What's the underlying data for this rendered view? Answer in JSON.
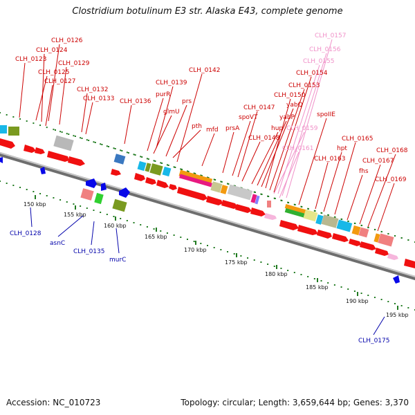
{
  "title": "Clostridium botulinum E3 str. Alaska E43, complete genome",
  "footer": {
    "accession_text": "Accession: NC_010723",
    "summary_text": "Topology: circular; Length: 3,659,644 bp; Genes: 3,370"
  },
  "colors": {
    "label_red": "#cc0000",
    "label_pink": "#f090c8",
    "label_blue": "#0000aa",
    "backbone": "#9a9a9a",
    "track_dots": "#1f7a1f"
  },
  "kbp_ticks": [
    "150 kbp",
    "155 kbp",
    "160 kbp",
    "165 kbp",
    "170 kbp",
    "175 kbp",
    "180 kbp",
    "185 kbp",
    "190 kbp",
    "195 kbp"
  ],
  "labels_top": [
    {
      "text": "CLH_0126",
      "tone": "red"
    },
    {
      "text": "CLH_0124",
      "tone": "red"
    },
    {
      "text": "CLH_0123",
      "tone": "red"
    },
    {
      "text": "CLH_0129",
      "tone": "red"
    },
    {
      "text": "CLH_0125",
      "tone": "red"
    },
    {
      "text": "CLH_0127",
      "tone": "red"
    },
    {
      "text": "CLH_0132",
      "tone": "red"
    },
    {
      "text": "CLH_0133",
      "tone": "red"
    },
    {
      "text": "CLH_0136",
      "tone": "red"
    },
    {
      "text": "purR",
      "tone": "red"
    },
    {
      "text": "CLH_0139",
      "tone": "red"
    },
    {
      "text": "glmU",
      "tone": "red"
    },
    {
      "text": "prs",
      "tone": "red"
    },
    {
      "text": "CLH_0142",
      "tone": "red"
    },
    {
      "text": "pth",
      "tone": "red"
    },
    {
      "text": "mfd",
      "tone": "red"
    },
    {
      "text": "prsA",
      "tone": "red"
    },
    {
      "text": "spoVT",
      "tone": "red"
    },
    {
      "text": "CLH_0147",
      "tone": "red"
    },
    {
      "text": "CLH_0148",
      "tone": "red"
    },
    {
      "text": "hup",
      "tone": "red"
    },
    {
      "text": "yabP",
      "tone": "red"
    },
    {
      "text": "yabQ",
      "tone": "red"
    },
    {
      "text": "CLH_0150",
      "tone": "red"
    },
    {
      "text": "CLH_0153",
      "tone": "red"
    },
    {
      "text": "CLH_0154",
      "tone": "red"
    },
    {
      "text": "CLH_0155",
      "tone": "pink"
    },
    {
      "text": "CLH_0156",
      "tone": "pink"
    },
    {
      "text": "CLH_0157",
      "tone": "pink"
    },
    {
      "text": "CLH_0159",
      "tone": "pink"
    },
    {
      "text": "CLH_0161",
      "tone": "pink"
    },
    {
      "text": "spoIIE",
      "tone": "red"
    },
    {
      "text": "CLH_0163",
      "tone": "red"
    },
    {
      "text": "hpt",
      "tone": "red"
    },
    {
      "text": "CLH_0165",
      "tone": "red"
    },
    {
      "text": "fhs",
      "tone": "red"
    },
    {
      "text": "CLH_0167",
      "tone": "red"
    },
    {
      "text": "CLH_0168",
      "tone": "red"
    },
    {
      "text": "CLH_0169",
      "tone": "red"
    }
  ],
  "labels_bottom": [
    {
      "text": "CLH_0128",
      "tone": "blue"
    },
    {
      "text": "asnC",
      "tone": "blue"
    },
    {
      "text": "CLH_0135",
      "tone": "blue"
    },
    {
      "text": "murC",
      "tone": "blue"
    },
    {
      "text": "CLH_0175",
      "tone": "blue"
    }
  ]
}
